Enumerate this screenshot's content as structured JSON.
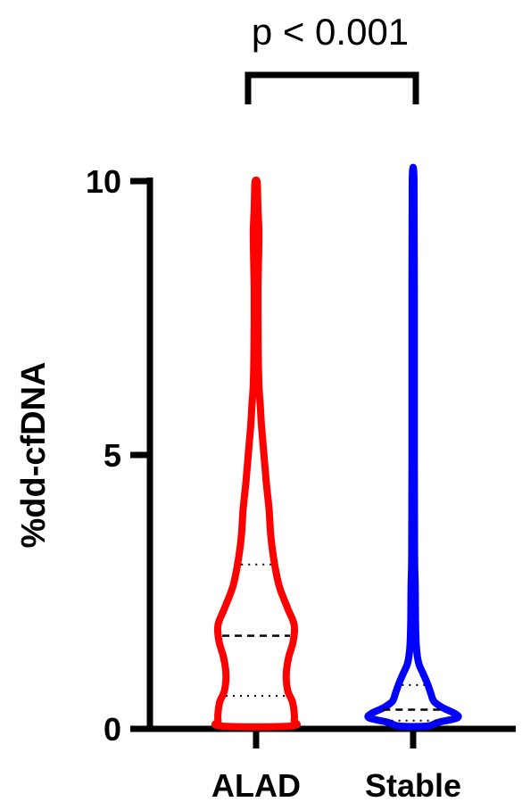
{
  "chart_data": {
    "type": "violin",
    "ylabel": "%dd-cfDNA",
    "ylim": [
      0,
      10
    ],
    "yticks": [
      0,
      5,
      10
    ],
    "categories": [
      "ALAD",
      "Stable"
    ],
    "annotation": "p < 0.001",
    "series": [
      {
        "category": "ALAD",
        "color": "#ff0000",
        "median": 1.7,
        "q1": 0.6,
        "q3": 3.0,
        "profile": [
          [
            0.05,
            0.75
          ],
          [
            0.15,
            0.82
          ],
          [
            0.3,
            0.82
          ],
          [
            0.5,
            0.78
          ],
          [
            0.7,
            0.68
          ],
          [
            1.0,
            0.65
          ],
          [
            1.3,
            0.7
          ],
          [
            1.6,
            0.8
          ],
          [
            1.9,
            0.82
          ],
          [
            2.2,
            0.68
          ],
          [
            2.6,
            0.5
          ],
          [
            3.0,
            0.4
          ],
          [
            3.5,
            0.32
          ],
          [
            4.0,
            0.28
          ],
          [
            4.5,
            0.22
          ],
          [
            5.0,
            0.17
          ],
          [
            5.5,
            0.12
          ],
          [
            5.9,
            0.09
          ],
          [
            6.3,
            0.06
          ],
          [
            7.0,
            0.045
          ],
          [
            8.0,
            0.04
          ],
          [
            8.7,
            0.055
          ],
          [
            9.1,
            0.06
          ],
          [
            9.5,
            0.04
          ],
          [
            9.85,
            0.03
          ],
          [
            10.0,
            0.02
          ]
        ]
      },
      {
        "category": "Stable",
        "color": "#0000ff",
        "median": 0.35,
        "q1": 0.15,
        "q3": 0.8,
        "profile": [
          [
            0.05,
            0.3
          ],
          [
            0.12,
            0.55
          ],
          [
            0.2,
            0.95
          ],
          [
            0.28,
            0.9
          ],
          [
            0.38,
            0.65
          ],
          [
            0.5,
            0.45
          ],
          [
            0.65,
            0.38
          ],
          [
            0.8,
            0.32
          ],
          [
            1.0,
            0.22
          ],
          [
            1.2,
            0.12
          ],
          [
            1.5,
            0.07
          ],
          [
            2.0,
            0.05
          ],
          [
            2.6,
            0.045
          ],
          [
            3.2,
            0.03
          ],
          [
            5.0,
            0.025
          ],
          [
            8.0,
            0.025
          ],
          [
            10.0,
            0.02
          ]
        ]
      }
    ]
  }
}
